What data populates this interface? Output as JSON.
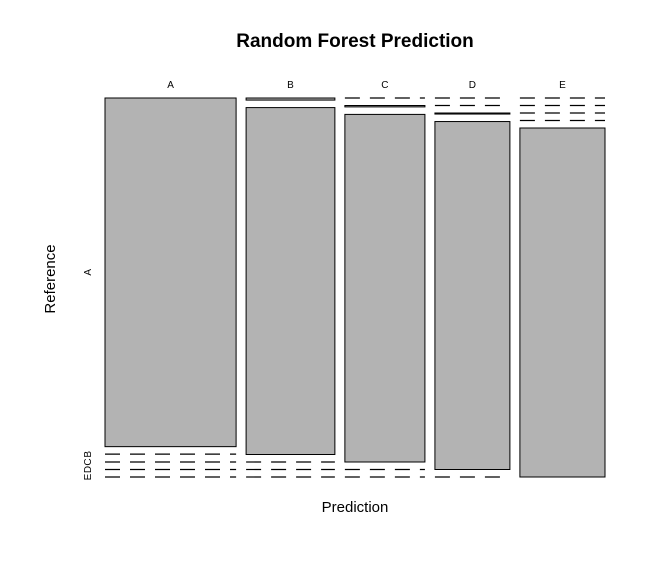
{
  "chart_data": {
    "type": "mosaic",
    "title": "Random Forest Prediction",
    "xlabel": "Prediction",
    "ylabel": "Reference",
    "x_categories": [
      "A",
      "B",
      "C",
      "D",
      "E"
    ],
    "y_categories": [
      "A",
      "B",
      "C",
      "D",
      "E"
    ],
    "y_tick_labels": [
      "A",
      "B",
      "C",
      "D",
      "E"
    ],
    "cells": {
      "A": {
        "A": 0.999,
        "B": 0.001,
        "C": 0.0,
        "D": 0.0,
        "E": 0.0
      },
      "B": {
        "A": 0.006,
        "B": 0.994,
        "C": 0.0,
        "D": 0.0,
        "E": 0.0
      },
      "C": {
        "A": 0.0,
        "B": 0.004,
        "C": 0.996,
        "D": 0.0,
        "E": 0.0
      },
      "D": {
        "A": 0.0,
        "B": 0.0,
        "C": 0.003,
        "D": 0.997,
        "E": 0.0
      },
      "E": {
        "A": 0.0,
        "B": 0.0,
        "C": 0.0,
        "D": 0.0,
        "E": 1.0
      }
    },
    "column_share": {
      "A": 0.285,
      "B": 0.193,
      "C": 0.174,
      "D": 0.163,
      "E": 0.185
    },
    "fill_color": "#b3b3b3",
    "stroke_color": "#000000",
    "grid": false
  }
}
